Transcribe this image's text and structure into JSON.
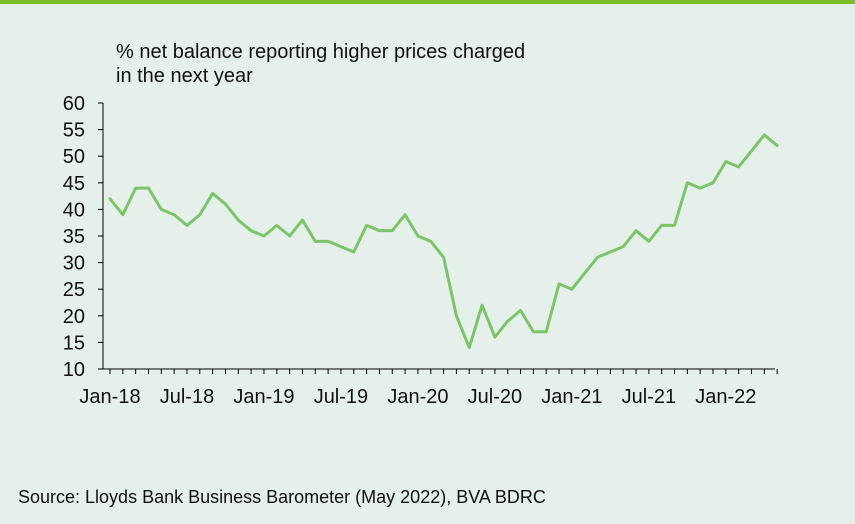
{
  "chart_data": {
    "type": "line",
    "title_lines": [
      "% net balance reporting higher prices charged",
      "in the next year"
    ],
    "xlabel": "",
    "ylabel": "",
    "ylim": [
      10,
      60
    ],
    "yticks": [
      10,
      15,
      20,
      25,
      30,
      35,
      40,
      45,
      50,
      55,
      60
    ],
    "x_tick_labels": [
      "Jan-18",
      "Jul-18",
      "Jan-19",
      "Jul-19",
      "Jan-20",
      "Jul-20",
      "Jan-21",
      "Jul-21",
      "Jan-22"
    ],
    "x_start": "Jan-18",
    "x_end": "May-22",
    "grid": false,
    "legend": "none",
    "series": [
      {
        "color": "#7cc46a",
        "x": [
          "Jan-18",
          "Feb-18",
          "Mar-18",
          "Apr-18",
          "May-18",
          "Jun-18",
          "Jul-18",
          "Aug-18",
          "Sep-18",
          "Oct-18",
          "Nov-18",
          "Dec-18",
          "Jan-19",
          "Feb-19",
          "Mar-19",
          "Apr-19",
          "May-19",
          "Jun-19",
          "Jul-19",
          "Aug-19",
          "Sep-19",
          "Oct-19",
          "Nov-19",
          "Dec-19",
          "Jan-20",
          "Feb-20",
          "Mar-20",
          "Apr-20",
          "May-20",
          "Jun-20",
          "Jul-20",
          "Aug-20",
          "Sep-20",
          "Oct-20",
          "Nov-20",
          "Dec-20",
          "Jan-21",
          "Feb-21",
          "Mar-21",
          "Apr-21",
          "May-21",
          "Jun-21",
          "Jul-21",
          "Aug-21",
          "Sep-21",
          "Oct-21",
          "Nov-21",
          "Dec-21",
          "Jan-22",
          "Feb-22",
          "Mar-22",
          "Apr-22",
          "May-22"
        ],
        "values": [
          42,
          39,
          44,
          44,
          40,
          39,
          37,
          39,
          43,
          41,
          38,
          36,
          35,
          37,
          35,
          38,
          34,
          34,
          33,
          32,
          37,
          36,
          36,
          39,
          35,
          34,
          31,
          20,
          14,
          22,
          16,
          19,
          21,
          17,
          17,
          26,
          25,
          28,
          31,
          32,
          33,
          36,
          34,
          37,
          37,
          45,
          44,
          45,
          49,
          48,
          51,
          54,
          52
        ]
      }
    ]
  },
  "footer": {
    "source": "Source: Lloyds Bank Business Barometer (May 2022), BVA BDRC"
  }
}
